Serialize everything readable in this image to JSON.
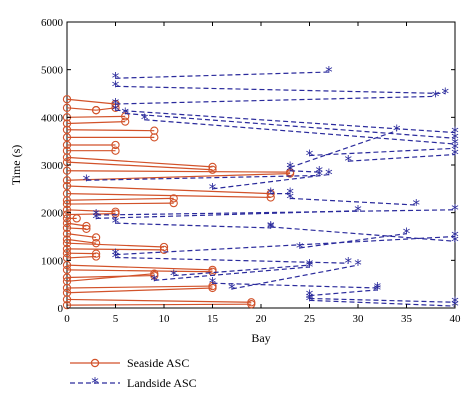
{
  "chart_data": {
    "type": "line",
    "title": "",
    "xlabel": "Bay",
    "ylabel": "Time (s)",
    "xlim": [
      0,
      40
    ],
    "ylim": [
      0,
      6000
    ],
    "xticks": [
      0,
      5,
      10,
      15,
      20,
      25,
      30,
      35,
      40
    ],
    "yticks": [
      0,
      1000,
      2000,
      3000,
      4000,
      5000,
      6000
    ],
    "grid": false,
    "legend_position": "below",
    "series": [
      {
        "name": "Seaside ASC",
        "color": "#d2522a",
        "style": "solid",
        "marker": "circle",
        "segments": [
          [
            [
              0,
              4380
            ],
            [
              5,
              4280
            ]
          ],
          [
            [
              0,
              4200
            ],
            [
              3,
              4150
            ]
          ],
          [
            [
              3,
              4150
            ],
            [
              5,
              4200
            ]
          ],
          [
            [
              0,
              4000
            ],
            [
              6,
              4020
            ]
          ],
          [
            [
              0,
              3870
            ],
            [
              6,
              3910
            ]
          ],
          [
            [
              0,
              3740
            ],
            [
              9,
              3720
            ]
          ],
          [
            [
              0,
              3580
            ],
            [
              9,
              3580
            ]
          ],
          [
            [
              0,
              3420
            ],
            [
              5,
              3420
            ]
          ],
          [
            [
              0,
              3300
            ],
            [
              5,
              3300
            ]
          ],
          [
            [
              0,
              3160
            ],
            [
              15,
              2960
            ]
          ],
          [
            [
              0,
              3060
            ],
            [
              15,
              2900
            ]
          ],
          [
            [
              0,
              2880
            ],
            [
              23,
              2850
            ]
          ],
          [
            [
              0,
              2680
            ],
            [
              23,
              2820
            ]
          ],
          [
            [
              0,
              2560
            ],
            [
              21,
              2400
            ]
          ],
          [
            [
              0,
              2400
            ],
            [
              21,
              2320
            ]
          ],
          [
            [
              0,
              2260
            ],
            [
              11,
              2300
            ]
          ],
          [
            [
              0,
              2180
            ],
            [
              11,
              2200
            ]
          ],
          [
            [
              0,
              2060
            ],
            [
              5,
              2020
            ]
          ],
          [
            [
              0,
              1960
            ],
            [
              5,
              1980
            ]
          ],
          [
            [
              0,
              1880
            ],
            [
              1,
              1880
            ]
          ],
          [
            [
              0,
              1780
            ],
            [
              2,
              1720
            ]
          ],
          [
            [
              0,
              1680
            ],
            [
              2,
              1660
            ]
          ],
          [
            [
              0,
              1560
            ],
            [
              3,
              1480
            ]
          ],
          [
            [
              0,
              1440
            ],
            [
              3,
              1360
            ]
          ],
          [
            [
              0,
              1360
            ],
            [
              10,
              1280
            ]
          ],
          [
            [
              0,
              1240
            ],
            [
              10,
              1220
            ]
          ],
          [
            [
              0,
              1150
            ],
            [
              3,
              1140
            ]
          ],
          [
            [
              0,
              1050
            ],
            [
              3,
              1080
            ]
          ],
          [
            [
              0,
              900
            ],
            [
              15,
              800
            ]
          ],
          [
            [
              0,
              800
            ],
            [
              15,
              760
            ]
          ],
          [
            [
              0,
              640
            ],
            [
              9,
              680
            ]
          ],
          [
            [
              0,
              560
            ],
            [
              9,
              720
            ]
          ],
          [
            [
              0,
              420
            ],
            [
              15,
              460
            ]
          ],
          [
            [
              0,
              320
            ],
            [
              15,
              420
            ]
          ],
          [
            [
              0,
              180
            ],
            [
              19,
              120
            ]
          ],
          [
            [
              0,
              60
            ],
            [
              19,
              80
            ]
          ]
        ]
      },
      {
        "name": "Landside ASC",
        "color": "#2a2a9c",
        "style": "dashed",
        "marker": "asterisk",
        "segments": [
          [
            [
              5,
              4820
            ],
            [
              27,
              4950
            ]
          ],
          [
            [
              5,
              4650
            ],
            [
              39,
              4500
            ]
          ],
          [
            [
              5,
              4280
            ],
            [
              38,
              4440
            ]
          ],
          [
            [
              5,
              4150
            ],
            [
              40,
              3680
            ]
          ],
          [
            [
              6,
              4080
            ],
            [
              40,
              3560
            ]
          ],
          [
            [
              8,
              3950
            ],
            [
              40,
              3440
            ]
          ],
          [
            [
              25,
              3200
            ],
            [
              40,
              3350
            ]
          ],
          [
            [
              29,
              3080
            ],
            [
              40,
              3220
            ]
          ],
          [
            [
              23,
              2950
            ],
            [
              34,
              3720
            ]
          ],
          [
            [
              23,
              2880
            ],
            [
              26,
              2850
            ]
          ],
          [
            [
              2,
              2680
            ],
            [
              26,
              2780
            ]
          ],
          [
            [
              15,
              2500
            ],
            [
              27,
              2800
            ]
          ],
          [
            [
              23,
              2400
            ],
            [
              21,
              2400
            ]
          ],
          [
            [
              23,
              2300
            ],
            [
              36,
              2160
            ]
          ],
          [
            [
              3,
              1950
            ],
            [
              40,
              2060
            ]
          ],
          [
            [
              3,
              1880
            ],
            [
              30,
              2040
            ]
          ],
          [
            [
              5,
              1780
            ],
            [
              21,
              1680
            ]
          ],
          [
            [
              21,
              1700
            ],
            [
              40,
              1400
            ]
          ],
          [
            [
              24,
              1260
            ],
            [
              35,
              1560
            ]
          ],
          [
            [
              5,
              1120
            ],
            [
              40,
              1500
            ]
          ],
          [
            [
              5,
              1060
            ],
            [
              29,
              940
            ]
          ],
          [
            [
              9,
              580
            ],
            [
              25,
              860
            ]
          ],
          [
            [
              11,
              680
            ],
            [
              25,
              900
            ]
          ],
          [
            [
              15,
              520
            ],
            [
              32,
              420
            ]
          ],
          [
            [
              17,
              400
            ],
            [
              30,
              900
            ]
          ],
          [
            [
              25,
              260
            ],
            [
              32,
              380
            ]
          ],
          [
            [
              25,
              200
            ],
            [
              40,
              120
            ]
          ],
          [
            [
              25,
              160
            ],
            [
              40,
              40
            ]
          ]
        ]
      }
    ]
  }
}
